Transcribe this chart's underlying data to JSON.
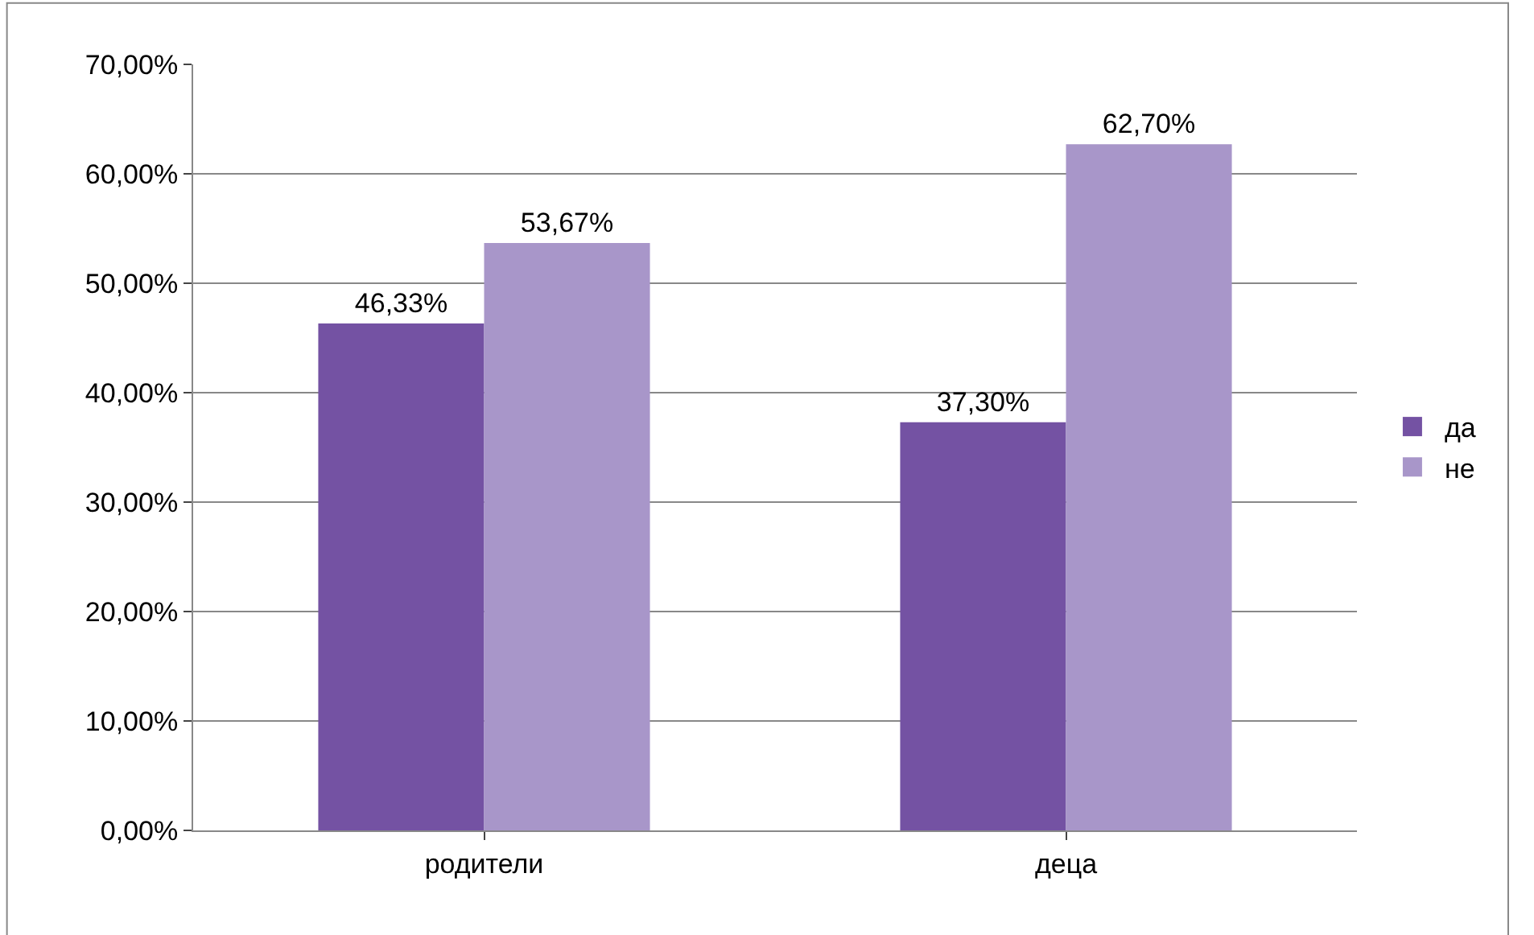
{
  "chart_data": {
    "type": "bar",
    "categories": [
      "родители",
      "деца"
    ],
    "series": [
      {
        "name": "да",
        "color": "#7452a3",
        "values": [
          46.33,
          37.3
        ],
        "value_labels": [
          "46,33%",
          "37,30%"
        ]
      },
      {
        "name": "не",
        "color": "#a896c9",
        "values": [
          53.67,
          62.7
        ],
        "value_labels": [
          "53,67%",
          "62,70%"
        ]
      }
    ],
    "ylim": [
      0,
      70
    ],
    "yticks": [
      {
        "value": 0,
        "label": "0,00%"
      },
      {
        "value": 10,
        "label": "10,00%"
      },
      {
        "value": 20,
        "label": "20,00%"
      },
      {
        "value": 30,
        "label": "30,00%"
      },
      {
        "value": 40,
        "label": "40,00%"
      },
      {
        "value": 50,
        "label": "50,00%"
      },
      {
        "value": 60,
        "label": "60,00%"
      },
      {
        "value": 70,
        "label": "70,00%"
      }
    ],
    "grid": "y",
    "legend": "right"
  }
}
